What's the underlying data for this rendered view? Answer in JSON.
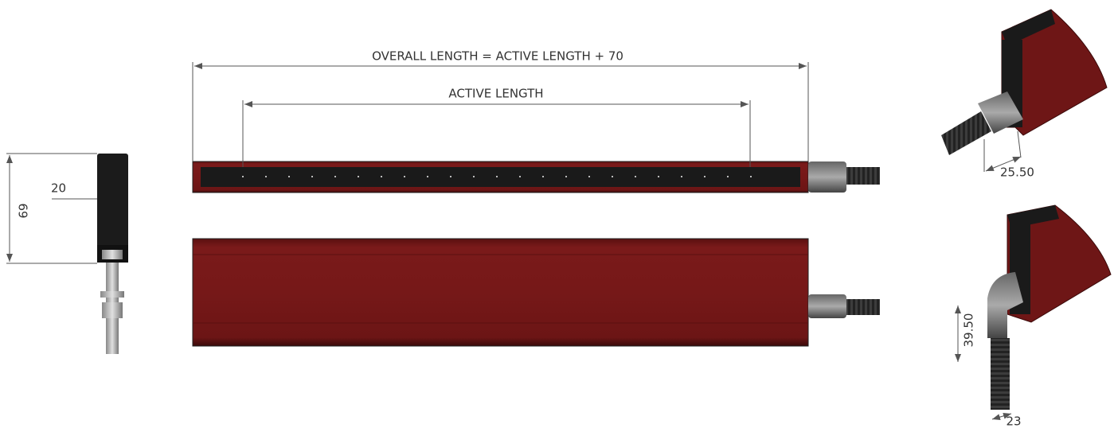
{
  "dimensions": {
    "overall_length": "OVERALL LENGTH = ACTIVE LENGTH + 70",
    "active_length": "ACTIVE LENGTH",
    "side_width": "20",
    "side_height": "69",
    "straight_fitting": "25.50",
    "elbow_height": "39.50",
    "elbow_width": "23"
  }
}
